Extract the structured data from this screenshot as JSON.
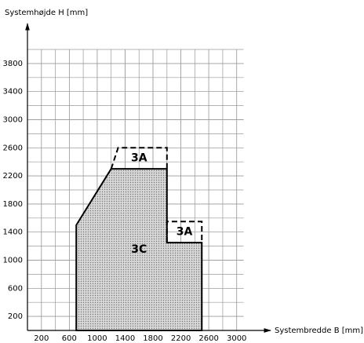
{
  "chart_data": {
    "type": "region",
    "y_label": "Systemhøjde H [mm]",
    "x_label": "Systembredde B [mm]",
    "xlim": [
      0,
      3100
    ],
    "ylim": [
      0,
      4000
    ],
    "xticks": [
      200,
      600,
      1000,
      1400,
      1800,
      2200,
      2600,
      3000
    ],
    "yticks": [
      200,
      600,
      1000,
      1400,
      1800,
      2200,
      2600,
      3000,
      3400,
      3800
    ],
    "grid": true,
    "series": [
      {
        "name": "3C",
        "style": "solid",
        "fill": "#c8c8c8",
        "x": [
          700,
          700,
          1200,
          2000,
          2000,
          2500,
          2500
        ],
        "y": [
          0,
          1500,
          2300,
          2300,
          1250,
          1250,
          0
        ]
      },
      {
        "name": "3A",
        "style": "dashed",
        "fill": null,
        "x": [
          1200,
          1300,
          2000,
          2000
        ],
        "y": [
          2300,
          2600,
          2600,
          2300
        ]
      },
      {
        "name": "3A",
        "style": "dashed",
        "fill": null,
        "x": [
          2000,
          2000,
          2500,
          2500
        ],
        "y": [
          1250,
          1550,
          1550,
          1250
        ]
      }
    ]
  }
}
